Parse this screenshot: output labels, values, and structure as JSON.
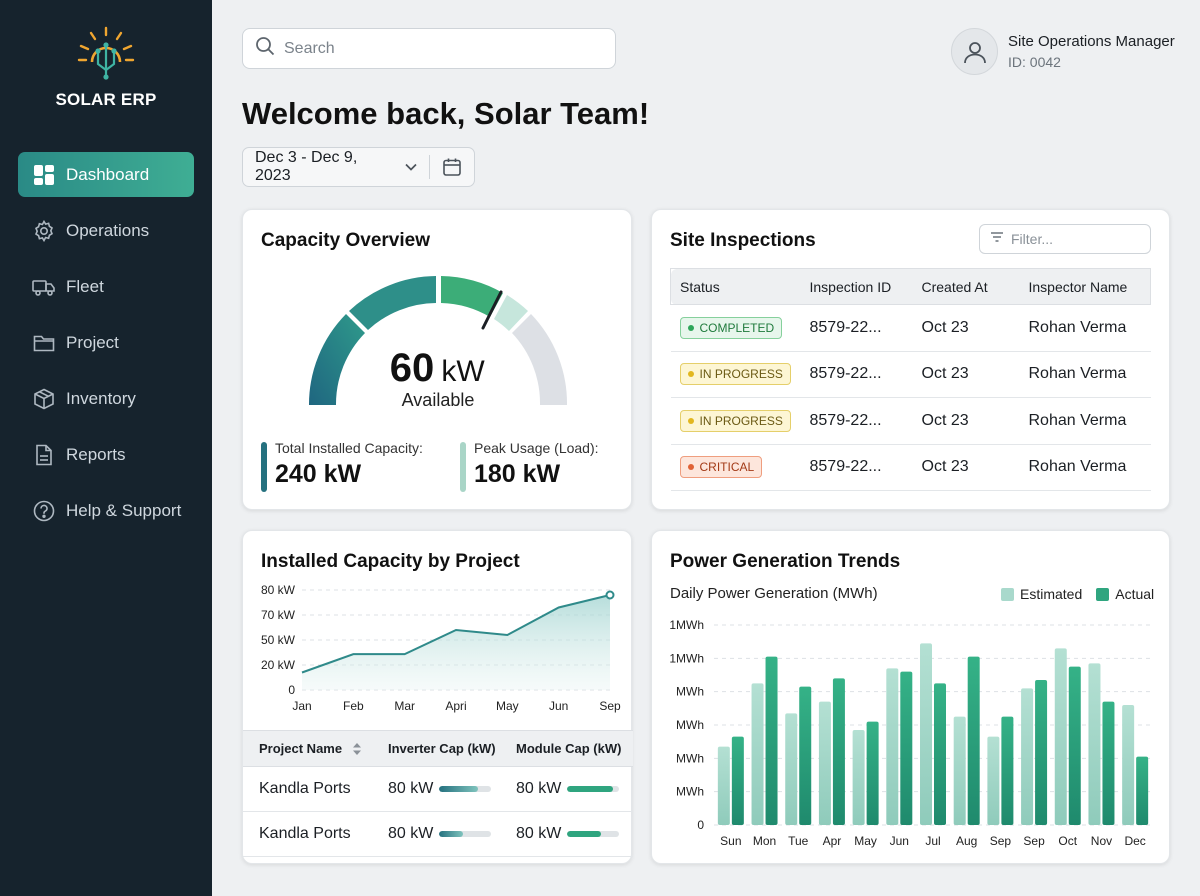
{
  "brand": {
    "name": "SOLAR ERP"
  },
  "sidebar": {
    "items": [
      {
        "label": "Dashboard",
        "icon": "dashboard-grid-icon",
        "active": true
      },
      {
        "label": "Operations",
        "icon": "gear-icon"
      },
      {
        "label": "Fleet",
        "icon": "truck-icon"
      },
      {
        "label": "Project",
        "icon": "folder-icon"
      },
      {
        "label": "Inventory",
        "icon": "box-icon"
      },
      {
        "label": "Reports",
        "icon": "document-icon"
      },
      {
        "label": "Help & Support",
        "icon": "help-circle-icon"
      }
    ]
  },
  "header": {
    "search_placeholder": "Search",
    "user_role": "Site Operations Manager",
    "user_id": "ID: 0042"
  },
  "welcome": "Welcome back, Solar Team!",
  "date_range": "Dec 3 - Dec 9, 2023",
  "capacity": {
    "title": "Capacity Overview",
    "gauge_value": "60",
    "gauge_unit": "kW",
    "gauge_label": "Available",
    "gauge_fraction": 0.75,
    "total_label": "Total Installed Capacity:",
    "total_value": "240 kW",
    "peak_label": "Peak Usage (Load):",
    "peak_value": "180 kW",
    "colors": {
      "teal_dark": "#25717f",
      "green": "#3cad78",
      "mint": "#c6e6dc",
      "grey": "#dde0e5"
    }
  },
  "inspections": {
    "title": "Site Inspections",
    "filter_placeholder": "Filter...",
    "columns": [
      "Status",
      "Inspection ID",
      "Created At",
      "Inspector Name"
    ],
    "rows": [
      {
        "status": "COMPLETED",
        "kind": "completed",
        "id": "8579-22...",
        "created": "Oct 23",
        "inspector": "Rohan Verma"
      },
      {
        "status": "IN PROGRESS",
        "kind": "progress",
        "id": "8579-22...",
        "created": "Oct 23",
        "inspector": "Rohan Verma"
      },
      {
        "status": "IN PROGRESS",
        "kind": "progress",
        "id": "8579-22...",
        "created": "Oct 23",
        "inspector": "Rohan Verma"
      },
      {
        "status": "CRITICAL",
        "kind": "critical",
        "id": "8579-22...",
        "created": "Oct 23",
        "inspector": "Rohan Verma"
      }
    ]
  },
  "projects": {
    "title": "Installed Capacity by Project",
    "columns": [
      "Project Name",
      "Inverter Cap (kW)",
      "Module Cap (kW)"
    ],
    "rows": [
      {
        "name": "Kandla Ports",
        "inverter": "80 kW",
        "inverter_fill": 0.75,
        "module": "80 kW",
        "module_fill": 0.88
      },
      {
        "name": "Kandla Ports",
        "inverter": "80 kW",
        "inverter_fill": 0.45,
        "module": "80 kW",
        "module_fill": 0.65
      }
    ]
  },
  "power": {
    "title": "Power Generation Trends",
    "subtitle": "Daily Power Generation (MWh)",
    "legend": [
      "Estimated",
      "Actual"
    ],
    "colors": {
      "estimated": "#a9d9cc",
      "actual": "#2fa57f"
    }
  },
  "chart_data": [
    {
      "type": "area",
      "title": "Installed Capacity by Project",
      "categories": [
        "Jan",
        "Feb",
        "Mar",
        "Apri",
        "May",
        "Jun",
        "Sep"
      ],
      "y_tick_labels": [
        "0",
        "20 kW",
        "50 kW",
        "70 kW",
        "80 kW"
      ],
      "values": [
        14,
        33,
        33,
        58,
        54,
        73,
        78
      ],
      "ylim": [
        0,
        80
      ],
      "grid": true
    },
    {
      "type": "bar",
      "title": "Daily Power Generation (MWh)",
      "categories": [
        "Sun",
        "Mon",
        "Tue",
        "Apr",
        "May",
        "Jun",
        "Jul",
        "Aug",
        "Sep",
        "Sep",
        "Oct",
        "Nov",
        "Dec"
      ],
      "y_tick_labels": [
        "0",
        "MWh",
        "MWh",
        "MWh",
        "MWh",
        "1MWh",
        "1MWh"
      ],
      "series": [
        {
          "name": "Estimated",
          "values": [
            47,
            85,
            67,
            74,
            57,
            94,
            109,
            65,
            53,
            82,
            106,
            97,
            72
          ]
        },
        {
          "name": "Actual",
          "values": [
            53,
            101,
            83,
            88,
            62,
            92,
            85,
            101,
            65,
            87,
            95,
            74,
            41
          ]
        }
      ],
      "ylim": [
        0,
        120
      ],
      "legend": "top-right",
      "grid": true
    }
  ]
}
